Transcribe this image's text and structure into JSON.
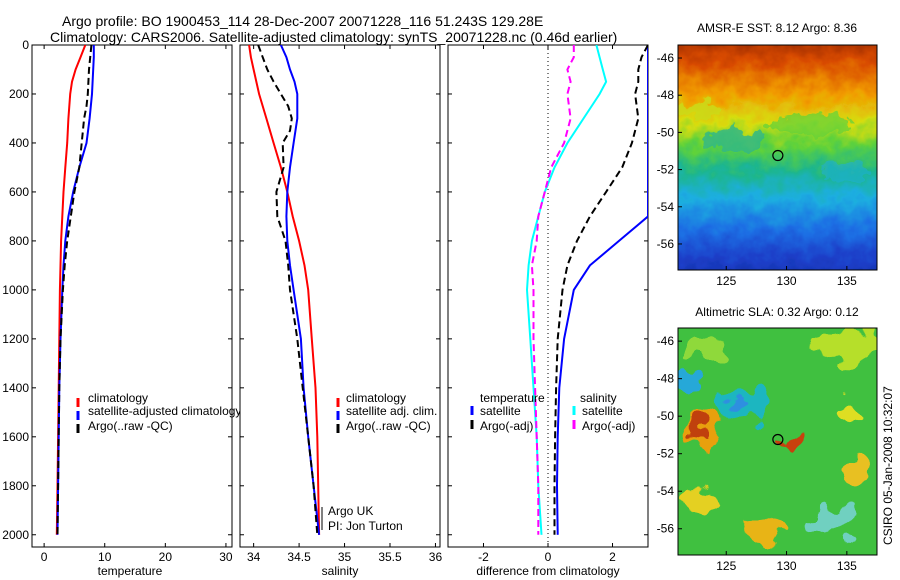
{
  "figure": {
    "title_line1": "Argo profile: BO 1900453_114 28-Dec-2007 20071228_116 51.243S 129.28E",
    "title_line2": "Climatology: CARS2006. Satellite-adjusted climatology: synTS_20071228.nc (0.46d earlier)",
    "credit": "CSIRO 05-Jan-2008 10:32:07",
    "argo_uk": "Argo UK",
    "pi": "PI: Jon Turton"
  },
  "colors": {
    "climatology": "#ff0000",
    "satellite_adjusted": "#0000ff",
    "argo": "#000000",
    "salinity_diff": "#00ffff",
    "argo_salinity_diff": "#ff00ff"
  },
  "chart_data": [
    {
      "type": "line",
      "name": "temperature-profile",
      "xlabel": "temperature",
      "xlim": [
        -2,
        31
      ],
      "ylim": [
        2050,
        0
      ],
      "xticks": [
        "0",
        "10",
        "20",
        "30"
      ],
      "yticks": [
        "0",
        "200",
        "400",
        "600",
        "800",
        "1000",
        "1200",
        "1400",
        "1600",
        "1800",
        "2000"
      ],
      "legend": [
        "climatology",
        "satellite-adjusted climatology",
        "Argo(..raw -QC)"
      ],
      "series": [
        {
          "name": "climatology",
          "color": "red",
          "style": "solid",
          "depth": [
            0,
            50,
            100,
            150,
            200,
            300,
            400,
            500,
            600,
            700,
            800,
            900,
            1000,
            1200,
            1400,
            1600,
            1800,
            2000
          ],
          "values": [
            6.8,
            6.0,
            5.2,
            4.6,
            4.3,
            4.0,
            3.8,
            3.5,
            3.2,
            3.0,
            2.8,
            2.7,
            2.6,
            2.5,
            2.4,
            2.3,
            2.2,
            2.1
          ]
        },
        {
          "name": "satellite-adjusted climatology",
          "color": "blue",
          "style": "solid",
          "depth": [
            0,
            50,
            100,
            150,
            200,
            300,
            400,
            500,
            600,
            700,
            800,
            900,
            1000,
            1200,
            1400,
            1600,
            1800,
            2000
          ],
          "values": [
            8.2,
            8.2,
            8.1,
            8.0,
            7.9,
            7.5,
            7.0,
            5.8,
            4.8,
            4.0,
            3.5,
            3.2,
            3.0,
            2.7,
            2.5,
            2.4,
            2.3,
            2.2
          ]
        },
        {
          "name": "Argo(..raw -QC)",
          "color": "black",
          "style": "dashed",
          "depth": [
            0,
            50,
            100,
            150,
            200,
            250,
            300,
            400,
            500,
            600,
            700,
            800,
            900,
            1000,
            1200,
            1400,
            1600,
            1800,
            2000
          ],
          "values": [
            7.8,
            7.6,
            7.4,
            7.3,
            7.2,
            7.0,
            6.6,
            6.2,
            5.8,
            5.0,
            4.4,
            3.8,
            3.4,
            3.1,
            2.7,
            2.5,
            2.4,
            2.3,
            2.2
          ]
        }
      ]
    },
    {
      "type": "line",
      "name": "salinity-profile",
      "xlabel": "salinity",
      "xlim": [
        33.85,
        36.05
      ],
      "ylim": [
        2050,
        0
      ],
      "xticks": [
        "34",
        "34.5",
        "35",
        "35.5",
        "36"
      ],
      "legend": [
        "climatology",
        "satellite adj. clim.",
        "Argo(..raw -QC)"
      ],
      "series": [
        {
          "name": "climatology",
          "color": "red",
          "style": "solid",
          "depth": [
            0,
            50,
            100,
            200,
            300,
            400,
            500,
            600,
            700,
            800,
            900,
            1000,
            1200,
            1400,
            1600,
            1800,
            2000
          ],
          "values": [
            33.95,
            33.97,
            34.0,
            34.06,
            34.14,
            34.22,
            34.3,
            34.37,
            34.43,
            34.5,
            34.56,
            34.6,
            34.64,
            34.68,
            34.7,
            34.71,
            34.72
          ]
        },
        {
          "name": "satellite adj. clim.",
          "color": "blue",
          "style": "solid",
          "depth": [
            0,
            50,
            100,
            150,
            200,
            300,
            400,
            500,
            600,
            700,
            800,
            900,
            1000,
            1200,
            1400,
            1600,
            1800,
            2000
          ],
          "values": [
            34.3,
            34.36,
            34.4,
            34.45,
            34.48,
            34.48,
            34.44,
            34.4,
            34.37,
            34.36,
            34.37,
            34.4,
            34.44,
            34.52,
            34.55,
            34.6,
            34.66,
            34.72
          ]
        },
        {
          "name": "Argo(..raw -QC)",
          "color": "black",
          "style": "dashed",
          "depth": [
            0,
            50,
            100,
            150,
            200,
            250,
            300,
            350,
            400,
            500,
            600,
            700,
            800,
            900,
            1000,
            1200,
            1400,
            1600,
            1800,
            2000
          ],
          "values": [
            34.05,
            34.1,
            34.15,
            34.22,
            34.3,
            34.38,
            34.42,
            34.4,
            34.32,
            34.33,
            34.25,
            34.26,
            34.35,
            34.38,
            34.4,
            34.48,
            34.54,
            34.6,
            34.66,
            34.7
          ]
        }
      ]
    },
    {
      "type": "line",
      "name": "difference-profile",
      "xlabel": "difference from climatology",
      "xlim": [
        -3.1,
        3.1
      ],
      "ylim": [
        2050,
        0
      ],
      "xticks": [
        "-2",
        "0",
        "2"
      ],
      "legend_left_title": "temperature",
      "legend_left": [
        "satellite",
        "Argo(-adj)"
      ],
      "legend_right_title": "salinity",
      "legend_right": [
        "satellite",
        "Argo(-adj)"
      ],
      "series": [
        {
          "name": "temperature satellite",
          "color": "blue",
          "style": "solid",
          "depth": [
            0,
            100,
            200,
            300,
            400,
            500,
            600,
            700,
            800,
            900,
            1000,
            1200,
            1400,
            1600,
            1800,
            2000
          ],
          "values": [
            3.1,
            3.1,
            3.1,
            3.1,
            3.1,
            3.1,
            3.1,
            3.1,
            2.2,
            1.3,
            0.8,
            0.5,
            0.35,
            0.3,
            0.28,
            0.3
          ]
        },
        {
          "name": "temperature Argo(-adj)",
          "color": "black",
          "style": "dashed",
          "depth": [
            0,
            50,
            100,
            150,
            200,
            300,
            400,
            500,
            600,
            700,
            800,
            900,
            1000,
            1200,
            1400,
            1600,
            1800,
            2000
          ],
          "values": [
            3.1,
            2.9,
            2.8,
            2.8,
            2.7,
            2.8,
            2.6,
            2.3,
            1.8,
            1.3,
            0.9,
            0.6,
            0.45,
            0.3,
            0.25,
            0.22,
            0.2,
            0.2
          ]
        },
        {
          "name": "salinity satellite",
          "color": "cyan",
          "style": "solid",
          "depth": [
            0,
            50,
            100,
            150,
            200,
            300,
            400,
            500,
            600,
            700,
            800,
            900,
            1000,
            1200,
            1400,
            1600,
            1800,
            2000
          ],
          "values": [
            1.5,
            1.6,
            1.7,
            1.8,
            1.6,
            1.1,
            0.6,
            0.2,
            -0.1,
            -0.3,
            -0.5,
            -0.6,
            -0.65,
            -0.55,
            -0.45,
            -0.35,
            -0.3,
            -0.2
          ]
        },
        {
          "name": "salinity Argo(-adj)",
          "color": "magenta",
          "style": "dashed",
          "depth": [
            0,
            50,
            100,
            150,
            200,
            300,
            400,
            500,
            600,
            700,
            800,
            900,
            1000,
            1200,
            1400,
            1600,
            1800,
            2000
          ],
          "values": [
            0.8,
            0.8,
            0.6,
            0.7,
            0.6,
            0.7,
            0.5,
            0.1,
            -0.1,
            -0.3,
            -0.35,
            -0.5,
            -0.45,
            -0.45,
            -0.4,
            -0.35,
            -0.3,
            -0.3
          ]
        }
      ]
    },
    {
      "type": "heatmap",
      "name": "amsre-sst-map",
      "title": "AMSR-E SST: 8.12 Argo: 8.36",
      "xticks": [
        "125",
        "130",
        "135"
      ],
      "yticks": [
        "-46",
        "-48",
        "-50",
        "-52",
        "-54",
        "-56"
      ],
      "xlim": [
        121,
        137.5
      ],
      "ylim": [
        -57.4,
        -45.3
      ],
      "float_position": {
        "lon": 129.28,
        "lat": -51.243
      }
    },
    {
      "type": "heatmap",
      "name": "altimetric-sla-map",
      "title": "Altimetric SLA: 0.32 Argo: 0.12",
      "xticks": [
        "125",
        "130",
        "135"
      ],
      "yticks": [
        "-46",
        "-48",
        "-50",
        "-52",
        "-54",
        "-56"
      ],
      "xlim": [
        121,
        137.5
      ],
      "ylim": [
        -57.4,
        -45.3
      ],
      "float_position": {
        "lon": 129.28,
        "lat": -51.243
      }
    }
  ]
}
